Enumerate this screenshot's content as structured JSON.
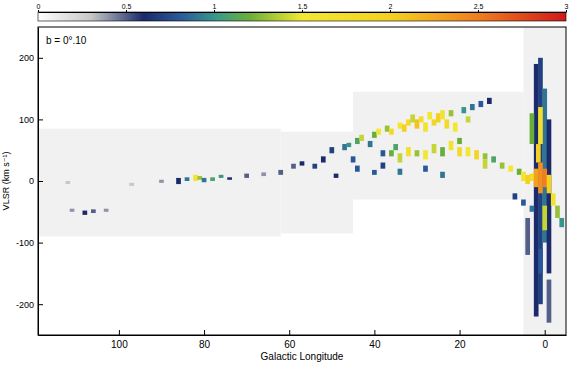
{
  "chart_data": {
    "type": "heatmap",
    "annotation": "b = 0°.10",
    "x_label": "Galactic Longitude",
    "y_label": "VLSR (km s⁻¹)",
    "xlim": [
      119,
      -5
    ],
    "xticks": [
      100,
      80,
      60,
      40,
      20,
      0
    ],
    "ylim": [
      -250,
      250
    ],
    "yticks": [
      -200,
      -100,
      0,
      100,
      200
    ],
    "colorbar_range": [
      0,
      3
    ],
    "colorbar_ticks": [
      0,
      0.5,
      1,
      1.5,
      2,
      2.5,
      3
    ],
    "coverage": [
      [
        119,
        62,
        -90,
        85
      ],
      [
        62,
        45,
        -85,
        80
      ],
      [
        45,
        5,
        -30,
        145
      ],
      [
        5,
        -5,
        -250,
        250
      ]
    ],
    "cells": [
      [
        108,
        -55,
        -48,
        0.6
      ],
      [
        106,
        -52,
        -46,
        0.5
      ],
      [
        111,
        -50,
        -45,
        0.4
      ],
      [
        103,
        -50,
        -45,
        0.4
      ],
      [
        112,
        -5,
        0,
        0.3
      ],
      [
        97,
        -8,
        -3,
        0.3
      ],
      [
        90,
        -3,
        2,
        0.4
      ],
      [
        86,
        -5,
        5,
        0.6
      ],
      [
        84,
        0,
        6,
        0.9
      ],
      [
        82,
        0,
        10,
        1.6
      ],
      [
        81,
        2,
        8,
        1.3
      ],
      [
        80,
        -2,
        5,
        0.9
      ],
      [
        78,
        0,
        6,
        1.1
      ],
      [
        76,
        5,
        10,
        1.0
      ],
      [
        74,
        2,
        6,
        0.6
      ],
      [
        70,
        5,
        12,
        0.5
      ],
      [
        66,
        8,
        14,
        0.4
      ],
      [
        62,
        10,
        18,
        0.5
      ],
      [
        59,
        20,
        28,
        0.5
      ],
      [
        57,
        25,
        32,
        0.6
      ],
      [
        54,
        20,
        28,
        0.7
      ],
      [
        52,
        30,
        40,
        0.6
      ],
      [
        50,
        45,
        55,
        0.7
      ],
      [
        49,
        5,
        12,
        0.6
      ],
      [
        47,
        50,
        60,
        0.9
      ],
      [
        46,
        55,
        62,
        1.0
      ],
      [
        45,
        30,
        40,
        0.8
      ],
      [
        44,
        60,
        70,
        1.1
      ],
      [
        43,
        65,
        75,
        1.4
      ],
      [
        41,
        55,
        65,
        0.9
      ],
      [
        40,
        70,
        80,
        1.2
      ],
      [
        39,
        75,
        85,
        1.5
      ],
      [
        38,
        40,
        50,
        0.8
      ],
      [
        37,
        80,
        90,
        1.3
      ],
      [
        36,
        75,
        85,
        1.8
      ],
      [
        35,
        50,
        60,
        1.1
      ],
      [
        34,
        85,
        95,
        1.5
      ],
      [
        33,
        80,
        92,
        2.0
      ],
      [
        32,
        90,
        100,
        1.8
      ],
      [
        31,
        95,
        108,
        1.4
      ],
      [
        30,
        85,
        100,
        2.1
      ],
      [
        29,
        95,
        105,
        1.7
      ],
      [
        28,
        80,
        95,
        1.6
      ],
      [
        27,
        100,
        112,
        1.5
      ],
      [
        26,
        90,
        100,
        1.9
      ],
      [
        25,
        95,
        110,
        2.0
      ],
      [
        24,
        100,
        115,
        1.6
      ],
      [
        23,
        85,
        100,
        1.8
      ],
      [
        22,
        105,
        115,
        1.3
      ],
      [
        21,
        80,
        95,
        1.5
      ],
      [
        20,
        60,
        70,
        1.2
      ],
      [
        19,
        110,
        120,
        1.0
      ],
      [
        18,
        95,
        105,
        1.4
      ],
      [
        17,
        115,
        125,
        0.9
      ],
      [
        15,
        120,
        130,
        0.8
      ],
      [
        14,
        35,
        45,
        1.3
      ],
      [
        13,
        125,
        135,
        0.6
      ],
      [
        36,
        40,
        50,
        1.2
      ],
      [
        34,
        30,
        45,
        1.4
      ],
      [
        32,
        40,
        55,
        1.7
      ],
      [
        30,
        40,
        50,
        1.3
      ],
      [
        28,
        35,
        50,
        1.5
      ],
      [
        26,
        45,
        60,
        1.4
      ],
      [
        24,
        40,
        55,
        1.2
      ],
      [
        22,
        50,
        65,
        1.6
      ],
      [
        20,
        40,
        55,
        1.8
      ],
      [
        18,
        40,
        55,
        1.5
      ],
      [
        16,
        35,
        50,
        1.9
      ],
      [
        14,
        20,
        35,
        1.4
      ],
      [
        12,
        30,
        40,
        1.1
      ],
      [
        10,
        20,
        30,
        1.3
      ],
      [
        8,
        15,
        25,
        1.5
      ],
      [
        6,
        10,
        20,
        1.2
      ],
      [
        34,
        10,
        20,
        0.9
      ],
      [
        28,
        15,
        25,
        0.8
      ],
      [
        24,
        5,
        15,
        0.9
      ],
      [
        40,
        10,
        18,
        0.8
      ],
      [
        38,
        20,
        30,
        0.7
      ],
      [
        44,
        15,
        25,
        0.8
      ],
      [
        2,
        -220,
        190,
        0.6
      ],
      [
        1,
        -200,
        200,
        0.7
      ],
      [
        0,
        -100,
        150,
        0.9
      ],
      [
        -1,
        -150,
        100,
        0.6
      ],
      [
        3,
        60,
        110,
        1.2
      ],
      [
        1,
        60,
        120,
        1.7
      ],
      [
        0,
        -80,
        -40,
        1.4
      ],
      [
        1,
        -150,
        -110,
        0.8
      ],
      [
        -1,
        -230,
        -160,
        0.5
      ],
      [
        4,
        -120,
        -60,
        0.5
      ],
      [
        1.5,
        30,
        60,
        2.0
      ],
      [
        5,
        0,
        15,
        1.6
      ],
      [
        4,
        -5,
        10,
        2.0
      ],
      [
        3,
        0,
        12,
        1.8
      ],
      [
        2,
        -10,
        20,
        2.3
      ],
      [
        1,
        -20,
        30,
        2.4
      ],
      [
        0,
        -10,
        20,
        2.5
      ],
      [
        -1,
        -20,
        10,
        2.0
      ],
      [
        -2,
        -40,
        -20,
        1.6
      ],
      [
        -3,
        -60,
        -40,
        1.3
      ],
      [
        -4,
        -75,
        -60,
        1.0
      ],
      [
        7,
        -30,
        -20,
        0.7
      ],
      [
        5,
        -40,
        -30,
        0.8
      ],
      [
        3,
        -50,
        -40,
        0.9
      ]
    ]
  }
}
